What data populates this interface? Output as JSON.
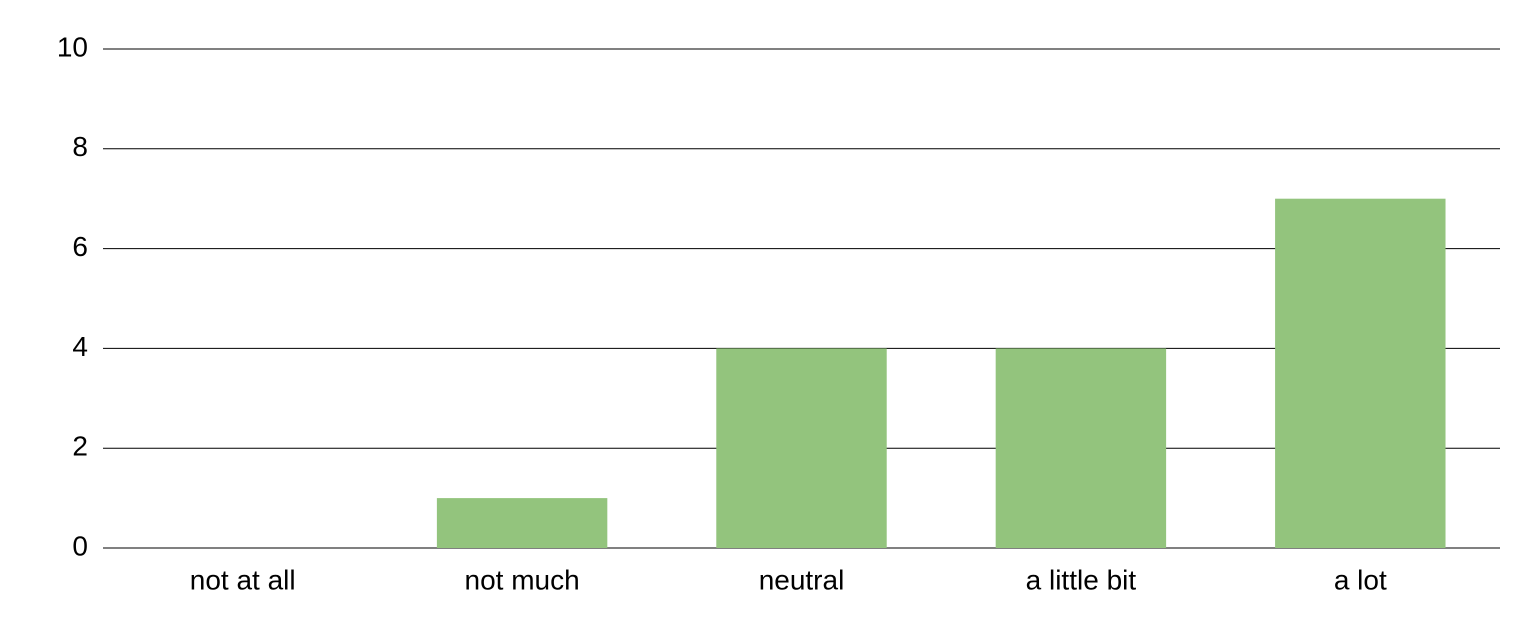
{
  "chart_data": {
    "type": "bar",
    "categories": [
      "not at all",
      "not much",
      "neutral",
      "a little bit",
      "a lot"
    ],
    "values": [
      0,
      1,
      4,
      4,
      7
    ],
    "color": "#93c47d",
    "ylim": [
      0,
      10
    ],
    "yticks": [
      0,
      2,
      4,
      6,
      8,
      10
    ],
    "grid": true
  }
}
